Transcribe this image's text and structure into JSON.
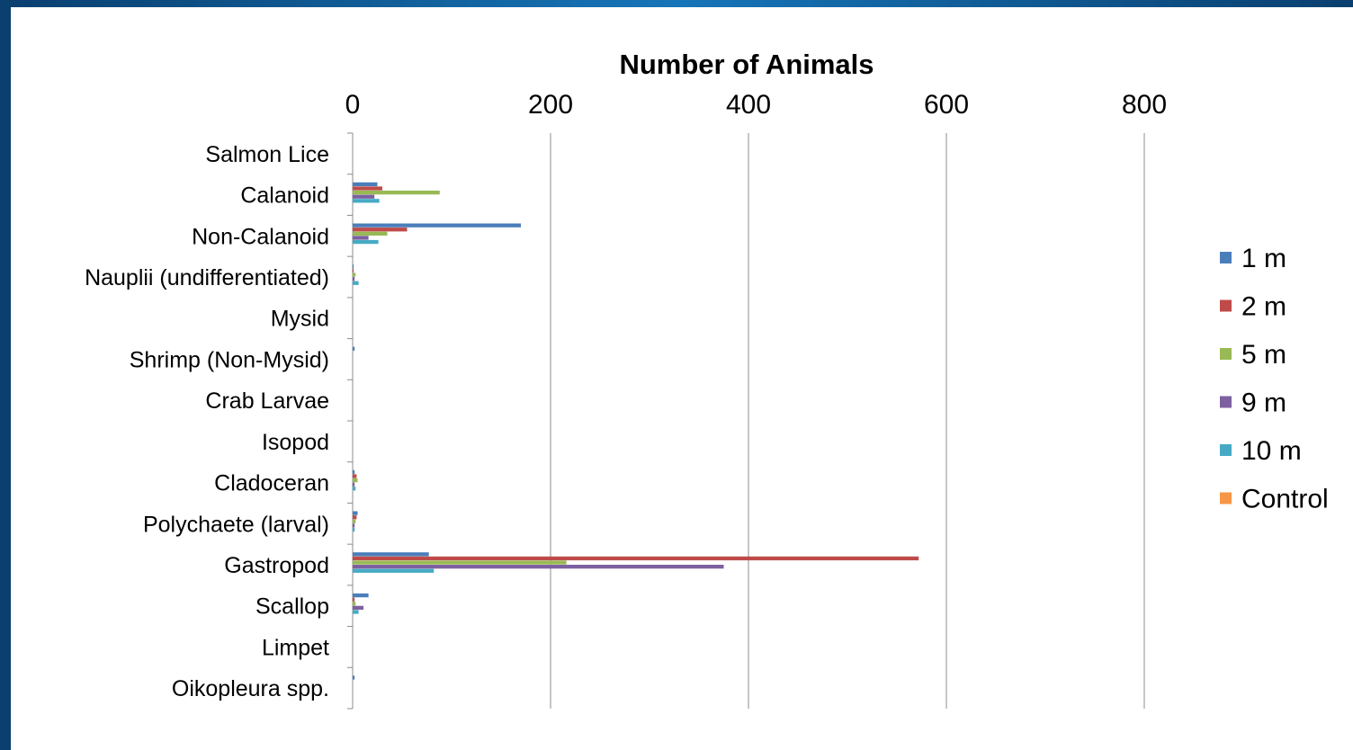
{
  "chart_data": {
    "type": "bar",
    "orientation": "horizontal",
    "title": "",
    "xlabel": "Number of Animals",
    "ylabel": "",
    "xlim": [
      0,
      800
    ],
    "xticks": [
      0,
      200,
      400,
      600,
      800
    ],
    "grid": true,
    "legend_position": "right",
    "categories": [
      "Salmon Lice",
      "Calanoid",
      "Non-Calanoid",
      "Nauplii (undifferentiated)",
      "Mysid",
      "Shrimp (Non-Mysid)",
      "Crab Larvae",
      "Isopod",
      "Cladoceran",
      "Polychaete (larval)",
      "Gastropod",
      "Scallop",
      "Limpet",
      "Oikopleura spp."
    ],
    "series": [
      {
        "name": "1 m",
        "color": "#4a7ebb",
        "values": [
          0,
          25,
          170,
          1,
          0,
          2,
          0,
          0,
          2,
          5,
          77,
          16,
          0,
          2
        ]
      },
      {
        "name": "2 m",
        "color": "#be4b48",
        "values": [
          0,
          30,
          55,
          1,
          0,
          0,
          0,
          0,
          4,
          4,
          572,
          2,
          0,
          0
        ]
      },
      {
        "name": "5 m",
        "color": "#98b954",
        "values": [
          0,
          88,
          35,
          3,
          0,
          0,
          0,
          0,
          5,
          3,
          216,
          3,
          0,
          0
        ]
      },
      {
        "name": "9 m",
        "color": "#7d60a0",
        "values": [
          0,
          22,
          16,
          2,
          0,
          0,
          0,
          0,
          2,
          2,
          375,
          11,
          0,
          0
        ]
      },
      {
        "name": "10 m",
        "color": "#46aac5",
        "values": [
          0,
          27,
          26,
          6,
          0,
          0,
          0,
          0,
          3,
          2,
          82,
          6,
          0,
          0
        ]
      },
      {
        "name": "Control",
        "color": "#f79646",
        "values": [
          0,
          0,
          0,
          0,
          0,
          0,
          0,
          0,
          0,
          0,
          0,
          0,
          0,
          0
        ]
      }
    ]
  }
}
